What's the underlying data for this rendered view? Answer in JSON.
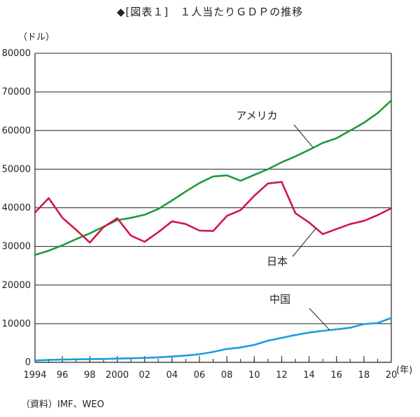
{
  "title": "◆[図表１]　１人当たりＧＤＰの推移",
  "y_unit": "（ドル）",
  "x_unit": "(年)",
  "source": "（資料）IMF、WEO",
  "colors": {
    "america": "#1e9a3a",
    "japan": "#d0174c",
    "china": "#1b9ce0",
    "grid": "#222222"
  },
  "chart_data": {
    "type": "line",
    "title": "１人当たりＧＤＰの推移",
    "xlabel": "(年)",
    "ylabel": "（ドル）",
    "xlim": [
      1994,
      2020
    ],
    "ylim": [
      0,
      80000
    ],
    "yticks": [
      0,
      10000,
      20000,
      30000,
      40000,
      50000,
      60000,
      70000,
      80000
    ],
    "xticks": [
      1994,
      1996,
      1998,
      2000,
      2002,
      2004,
      2006,
      2008,
      2010,
      2012,
      2014,
      2016,
      2018,
      2020
    ],
    "xtick_labels": [
      "1994",
      "96",
      "98",
      "2000",
      "02",
      "04",
      "06",
      "08",
      "10",
      "12",
      "14",
      "16",
      "18",
      "20"
    ],
    "grid": true,
    "x": [
      1994,
      1995,
      1996,
      1997,
      1998,
      1999,
      2000,
      2001,
      2002,
      2003,
      2004,
      2005,
      2006,
      2007,
      2008,
      2009,
      2010,
      2011,
      2012,
      2013,
      2014,
      2015,
      2016,
      2017,
      2018,
      2019,
      2020
    ],
    "series": [
      {
        "name": "アメリカ",
        "color_key": "america",
        "values": [
          27800,
          28900,
          30300,
          31900,
          33400,
          35100,
          36800,
          37400,
          38200,
          39700,
          41900,
          44200,
          46400,
          48100,
          48400,
          47000,
          48500,
          50000,
          51800,
          53300,
          55000,
          56800,
          58000,
          60000,
          62000,
          64500,
          67800
        ]
      },
      {
        "name": "日本",
        "color_key": "japan",
        "values": [
          38800,
          42500,
          37400,
          34300,
          31000,
          35000,
          37300,
          32800,
          31200,
          33700,
          36500,
          35800,
          34100,
          34000,
          37900,
          39400,
          43100,
          46300,
          46700,
          38600,
          36200,
          33200,
          34500,
          35800,
          36600,
          38100,
          39900
        ]
      },
      {
        "name": "中国",
        "color_key": "china",
        "values": [
          470,
          610,
          710,
          780,
          830,
          870,
          960,
          1050,
          1150,
          1290,
          1510,
          1760,
          2100,
          2700,
          3470,
          3840,
          4520,
          5600,
          6330,
          7080,
          7700,
          8170,
          8530,
          8970,
          9880,
          10170,
          11500
        ]
      }
    ],
    "annotations": [
      {
        "text": "アメリカ",
        "series": "アメリカ",
        "at_x": 2014.3
      },
      {
        "text": "日本",
        "series": "日本",
        "at_x": 2014.5
      },
      {
        "text": "中国",
        "series": "中国",
        "at_x": 2015.5
      }
    ]
  }
}
